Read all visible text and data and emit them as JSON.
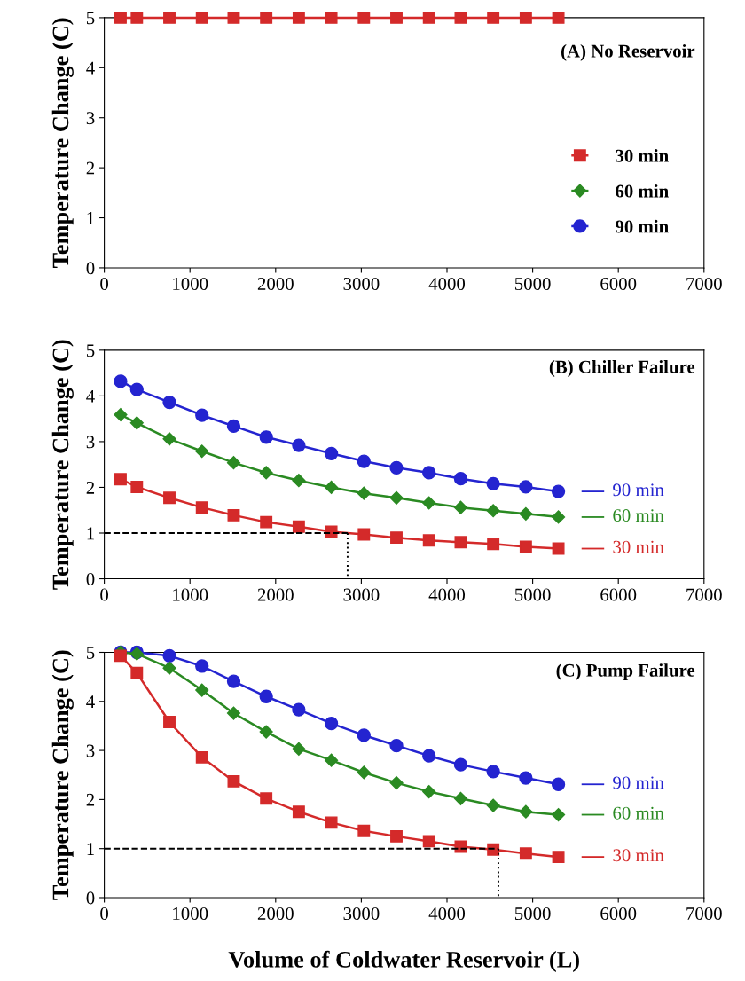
{
  "chart_data": [
    {
      "type": "line",
      "title": "(A) No Reservoir",
      "ylabel": "Temperature Change (C)",
      "x": [
        190,
        380,
        760,
        1140,
        1510,
        1890,
        2270,
        2650,
        3030,
        3410,
        3790,
        4160,
        4540,
        4920,
        5300
      ],
      "xlim": [
        0,
        7000
      ],
      "xticks": [
        0,
        1000,
        2000,
        3000,
        4000,
        5000,
        6000,
        7000
      ],
      "ylim": [
        0,
        5
      ],
      "yticks": [
        0,
        1,
        2,
        3,
        4,
        5
      ],
      "grid": false,
      "legend": "right",
      "series": [
        {
          "name": "30 min",
          "color": "#d42a2a",
          "marker": "square",
          "values": [
            5,
            5,
            5,
            5,
            5,
            5,
            5,
            5,
            5,
            5,
            5,
            5,
            5,
            5,
            5
          ]
        },
        {
          "name": "60 min",
          "color": "#2a8a22",
          "marker": "diamond",
          "values": [
            null,
            null,
            null,
            null,
            null,
            null,
            null,
            null,
            null,
            null,
            null,
            null,
            null,
            null,
            null
          ]
        },
        {
          "name": "90 min",
          "color": "#2424d0",
          "marker": "circle",
          "values": [
            null,
            null,
            null,
            null,
            null,
            null,
            null,
            null,
            null,
            null,
            null,
            null,
            null,
            null,
            null
          ]
        }
      ]
    },
    {
      "type": "line",
      "title": "(B) Chiller Failure",
      "ylabel": "Temperature Change (C)",
      "x": [
        190,
        380,
        760,
        1140,
        1510,
        1890,
        2270,
        2650,
        3030,
        3410,
        3790,
        4160,
        4540,
        4920,
        5300
      ],
      "xlim": [
        0,
        7000
      ],
      "xticks": [
        0,
        1000,
        2000,
        3000,
        4000,
        5000,
        6000,
        7000
      ],
      "ylim": [
        0,
        5
      ],
      "yticks": [
        0,
        1,
        2,
        3,
        4,
        5
      ],
      "grid": false,
      "legend": "bottom right",
      "series": [
        {
          "name": "90 min",
          "color": "#2424d0",
          "marker": "circle",
          "values": [
            4.32,
            4.14,
            3.86,
            3.58,
            3.34,
            3.1,
            2.92,
            2.74,
            2.57,
            2.43,
            2.32,
            2.19,
            2.08,
            2.01,
            1.91
          ]
        },
        {
          "name": "60 min",
          "color": "#2a8a22",
          "marker": "diamond",
          "values": [
            3.59,
            3.41,
            3.06,
            2.79,
            2.54,
            2.32,
            2.15,
            2.0,
            1.87,
            1.77,
            1.66,
            1.56,
            1.49,
            1.42,
            1.35
          ]
        },
        {
          "name": "30 min",
          "color": "#d42a2a",
          "marker": "square",
          "values": [
            2.18,
            2.01,
            1.77,
            1.56,
            1.39,
            1.24,
            1.14,
            1.03,
            0.97,
            0.9,
            0.84,
            0.8,
            0.76,
            0.7,
            0.66
          ]
        },
        {
          "color": "#000000",
          "marker": "none",
          "line_style": "dashed",
          "x": [
            0,
            2840
          ],
          "values": [
            1,
            1
          ]
        },
        {
          "color": "#000000",
          "marker": "none",
          "line_style": "dotted",
          "x": [
            2840,
            2840
          ],
          "values": [
            1,
            0
          ]
        }
      ]
    },
    {
      "type": "line",
      "title": "(C) Pump Failure",
      "ylabel": "Temperature Change (C)",
      "xlabel": "Volume of Coldwater Reservoir (L)",
      "x": [
        190,
        380,
        760,
        1140,
        1510,
        1890,
        2270,
        2650,
        3030,
        3410,
        3790,
        4160,
        4540,
        4920,
        5300
      ],
      "xlim": [
        0,
        7000
      ],
      "xticks": [
        0,
        1000,
        2000,
        3000,
        4000,
        5000,
        6000,
        7000
      ],
      "ylim": [
        0,
        5
      ],
      "yticks": [
        0,
        1,
        2,
        3,
        4,
        5
      ],
      "grid": false,
      "legend": "bottom right",
      "series": [
        {
          "name": "90 min",
          "color": "#2424d0",
          "marker": "circle",
          "values": [
            5.0,
            5.0,
            4.93,
            4.72,
            4.41,
            4.1,
            3.83,
            3.55,
            3.31,
            3.1,
            2.89,
            2.71,
            2.57,
            2.44,
            2.31
          ]
        },
        {
          "name": "60 min",
          "color": "#2a8a22",
          "marker": "diamond",
          "values": [
            5.0,
            4.97,
            4.68,
            4.23,
            3.76,
            3.38,
            3.03,
            2.8,
            2.55,
            2.34,
            2.16,
            2.02,
            1.88,
            1.75,
            1.69
          ]
        },
        {
          "name": "30 min",
          "color": "#d42a2a",
          "marker": "square",
          "values": [
            4.93,
            4.58,
            3.58,
            2.86,
            2.37,
            2.02,
            1.75,
            1.53,
            1.36,
            1.25,
            1.15,
            1.04,
            0.98,
            0.9,
            0.83
          ]
        },
        {
          "color": "#000000",
          "marker": "none",
          "line_style": "dashed",
          "x": [
            0,
            4600
          ],
          "values": [
            1,
            1
          ]
        },
        {
          "color": "#000000",
          "marker": "none",
          "line_style": "dotted",
          "x": [
            4600,
            4600
          ],
          "values": [
            1,
            0
          ]
        }
      ]
    }
  ]
}
